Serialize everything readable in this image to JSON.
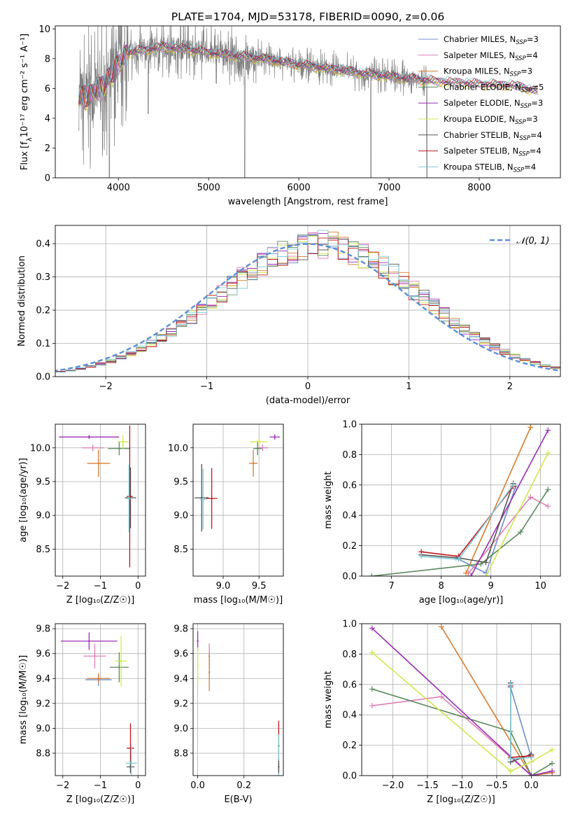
{
  "figure_title": "PLATE=1704, MJD=53178, FIBERID=0090, z=0.06",
  "colors": {
    "Chabrier MILES": "#6f8fd0",
    "Salpeter MILES": "#e07fb5",
    "Kroupa MILES": "#d97b2f",
    "Chabrier ELODIE": "#5a8a5e",
    "Salpeter ELODIE": "#9b2fb5",
    "Kroupa ELODIE": "#cfe84e",
    "Chabrier STELIB": "#555555",
    "Salpeter STELIB": "#c0181c",
    "Kroupa STELIB": "#7ecad4",
    "gaussian": "#5b8fd8"
  },
  "chart_data": [
    {
      "id": "spectrum",
      "type": "line",
      "xlabel": "wavelength [Angstrom, rest frame]",
      "ylabel_pre": "Flux [f",
      "ylabel_mid": "λ",
      "ylabel_post": "10⁻¹⁷ erg cm⁻² s⁻¹ A⁻¹]",
      "xlim": [
        3300,
        8900
      ],
      "ylim": [
        0,
        10.2
      ],
      "xticks": [
        4000,
        5000,
        6000,
        7000,
        8000
      ],
      "yticks": [
        0,
        2,
        4,
        6,
        8,
        10
      ],
      "grid": false,
      "legend_position": "top-right",
      "legend": [
        {
          "label": "Chabrier MILES, N",
          "sub": "SSP",
          "tail": "=3",
          "key": "Chabrier MILES"
        },
        {
          "label": "Salpeter MILES, N",
          "sub": "SSP",
          "tail": "=4",
          "key": "Salpeter MILES"
        },
        {
          "label": "Kroupa MILES, N",
          "sub": "SSP",
          "tail": "=3",
          "key": "Kroupa MILES"
        },
        {
          "label": "Chabrier ELODIE, N",
          "sub": "SSP",
          "tail": "=5",
          "key": "Chabrier ELODIE"
        },
        {
          "label": "Salpeter ELODIE, N",
          "sub": "SSP",
          "tail": "=3",
          "key": "Salpeter ELODIE"
        },
        {
          "label": "Kroupa ELODIE, N",
          "sub": "SSP",
          "tail": "=3",
          "key": "Kroupa ELODIE"
        },
        {
          "label": "Chabrier STELIB, N",
          "sub": "SSP",
          "tail": "=4",
          "key": "Chabrier STELIB"
        },
        {
          "label": "Salpeter STELIB, N",
          "sub": "SSP",
          "tail": "=4",
          "key": "Salpeter STELIB"
        },
        {
          "label": "Kroupa STELIB, N",
          "sub": "SSP",
          "tail": "=4",
          "key": "Kroupa STELIB"
        }
      ],
      "continuum": [
        [
          3560,
          5.3
        ],
        [
          3650,
          5.5
        ],
        [
          3800,
          6.0
        ],
        [
          3950,
          7.2
        ],
        [
          4100,
          8.4
        ],
        [
          4300,
          8.6
        ],
        [
          4500,
          8.8
        ],
        [
          4800,
          8.6
        ],
        [
          5000,
          8.4
        ],
        [
          5300,
          8.2
        ],
        [
          5600,
          8.0
        ],
        [
          6000,
          7.6
        ],
        [
          6500,
          7.2
        ],
        [
          7000,
          6.8
        ],
        [
          7500,
          6.5
        ],
        [
          8000,
          6.3
        ],
        [
          8400,
          6.2
        ],
        [
          8650,
          5.8
        ]
      ],
      "model_span": [
        3560,
        8650
      ],
      "observed_span": [
        3560,
        7440
      ],
      "dropouts": [
        [
          3900,
          0
        ],
        [
          4330,
          4.3
        ],
        [
          5400,
          0
        ],
        [
          6800,
          0
        ],
        [
          7420,
          0
        ]
      ]
    },
    {
      "id": "residuals",
      "type": "histogram",
      "xlabel": "(data-model)/error",
      "ylabel": "Normed distribution",
      "xlim": [
        -2.5,
        2.5
      ],
      "ylim": [
        0,
        0.455
      ],
      "xticks": [
        -2,
        -1,
        0,
        1,
        2
      ],
      "yticks": [
        0.0,
        0.1,
        0.2,
        0.3,
        0.4
      ],
      "grid": true,
      "legend_position": "top-right",
      "legend_label": "𝒩(0, 1)",
      "bin_width": 0.1
    },
    {
      "id": "age-vs-Z",
      "type": "scatter",
      "xlabel": "Z [log₁₀(Z/Z☉)]",
      "ylabel": "age  [log₁₀(age/yr)]",
      "xlim": [
        -2.2,
        0.2
      ],
      "ylim": [
        8.1,
        10.35
      ],
      "xticks": [
        -2,
        -1,
        0
      ],
      "yticks": [
        8.5,
        9.0,
        9.5,
        10.0
      ],
      "grid": true,
      "points": [
        {
          "key": "Salpeter ELODIE",
          "x": -1.3,
          "y": 10.16,
          "xerr": 0.8,
          "yerr": 0.03
        },
        {
          "key": "Salpeter MILES",
          "x": -1.2,
          "y": 10.0,
          "xerr": 0.3,
          "yerr": 0.05
        },
        {
          "key": "Kroupa MILES",
          "x": -1.05,
          "y": 9.77,
          "xerr": 0.3,
          "yerr": 0.2
        },
        {
          "key": "Chabrier ELODIE",
          "x": -0.5,
          "y": 9.99,
          "xerr": 0.3,
          "yerr": 0.1
        },
        {
          "key": "Kroupa ELODIE",
          "x": -0.4,
          "y": 10.09,
          "xerr": 0.15,
          "yerr": 0.1
        },
        {
          "key": "Chabrier STELIB",
          "x": -0.2,
          "y": 9.26,
          "xerr": 0.15,
          "yerr": 0.45
        },
        {
          "key": "Salpeter STELIB",
          "x": -0.22,
          "y": 9.28,
          "xerr": 0.08,
          "yerr": 1.05
        },
        {
          "key": "Kroupa STELIB",
          "x": -0.24,
          "y": 9.25,
          "xerr": 0.06,
          "yerr": 0.5
        }
      ]
    },
    {
      "id": "age-vs-mass",
      "type": "scatter",
      "xlabel": "mass [log₁₀(M/M☉)]",
      "ylabel": "",
      "xlim": [
        8.58,
        9.84
      ],
      "ylim": [
        8.1,
        10.35
      ],
      "xticks": [
        9.0,
        9.5
      ],
      "yticks": [
        8.5,
        9.0,
        9.5,
        10.0
      ],
      "grid": true,
      "points": [
        {
          "key": "Salpeter ELODIE",
          "x": 9.72,
          "y": 10.16,
          "xerr": 0.07,
          "yerr": 0.04
        },
        {
          "key": "Salpeter MILES",
          "x": 9.55,
          "y": 10.0,
          "xerr": 0.08,
          "yerr": 0.05
        },
        {
          "key": "Kroupa MILES",
          "x": 9.42,
          "y": 9.77,
          "xerr": 0.06,
          "yerr": 0.2
        },
        {
          "key": "Chabrier ELODIE",
          "x": 9.48,
          "y": 9.99,
          "xerr": 0.06,
          "yerr": 0.1
        },
        {
          "key": "Kroupa ELODIE",
          "x": 9.5,
          "y": 10.09,
          "xerr": 0.12,
          "yerr": 0.05
        },
        {
          "key": "Chabrier STELIB",
          "x": 8.7,
          "y": 9.26,
          "xerr": 0.1,
          "yerr": 0.5
        },
        {
          "key": "Salpeter STELIB",
          "x": 8.84,
          "y": 9.25,
          "xerr": 0.08,
          "yerr": 0.45
        },
        {
          "key": "Kroupa STELIB",
          "x": 8.72,
          "y": 9.24,
          "xerr": 0.05,
          "yerr": 0.45
        }
      ]
    },
    {
      "id": "weight-vs-age",
      "type": "line",
      "xlabel": "age  [log₁₀(age/yr)]",
      "ylabel": "mass weight",
      "xlim": [
        6.4,
        10.4
      ],
      "ylim": [
        0,
        1.0
      ],
      "xticks": [
        7,
        8,
        9,
        10
      ],
      "yticks": [
        0.0,
        0.2,
        0.4,
        0.6,
        0.8,
        1.0
      ],
      "grid": true,
      "series": [
        {
          "key": "Chabrier MILES",
          "x": [
            8.3,
            8.9,
            9.5
          ],
          "y": [
            0.12,
            0.02,
            0.59
          ]
        },
        {
          "key": "Salpeter MILES",
          "x": [
            8.55,
            9.8,
            10.15
          ],
          "y": [
            0.02,
            0.52,
            0.46
          ]
        },
        {
          "key": "Kroupa MILES",
          "x": [
            8.5,
            9.8
          ],
          "y": [
            0.02,
            0.98
          ]
        },
        {
          "key": "Chabrier ELODIE",
          "x": [
            6.6,
            8.8,
            9.6,
            10.15
          ],
          "y": [
            0.0,
            0.08,
            0.29,
            0.57
          ]
        },
        {
          "key": "Salpeter ELODIE",
          "x": [
            8.6,
            10.15
          ],
          "y": [
            0.0,
            0.96
          ]
        },
        {
          "key": "Kroupa ELODIE",
          "x": [
            8.9,
            10.15
          ],
          "y": [
            0.0,
            0.81
          ]
        },
        {
          "key": "Chabrier STELIB",
          "x": [
            7.6,
            8.35,
            8.9,
            9.45
          ],
          "y": [
            0.14,
            0.12,
            0.09,
            0.61
          ]
        },
        {
          "key": "Salpeter STELIB",
          "x": [
            7.6,
            8.35,
            9.45
          ],
          "y": [
            0.16,
            0.13,
            0.59
          ]
        },
        {
          "key": "Kroupa STELIB",
          "x": [
            7.6,
            8.35,
            9.45
          ],
          "y": [
            0.13,
            0.11,
            0.6
          ]
        }
      ]
    },
    {
      "id": "mass-vs-Z",
      "type": "scatter",
      "xlabel": "Z [log₁₀(Z/Z☉)]",
      "ylabel": "mass [log₁₀(M/M☉)]",
      "xlim": [
        -2.2,
        0.2
      ],
      "ylim": [
        8.62,
        9.84
      ],
      "xticks": [
        -2,
        -1,
        0
      ],
      "yticks": [
        8.8,
        9.0,
        9.2,
        9.4,
        9.6,
        9.8
      ],
      "grid": true,
      "points": [
        {
          "key": "Salpeter ELODIE",
          "x": -1.3,
          "y": 9.7,
          "xerr": 0.75,
          "yerr": 0.07
        },
        {
          "key": "Salpeter MILES",
          "x": -1.15,
          "y": 9.58,
          "xerr": 0.3,
          "yerr": 0.1
        },
        {
          "key": "Chabrier MILES",
          "x": -1.05,
          "y": 9.39,
          "xerr": 0.35,
          "yerr": 0.05
        },
        {
          "key": "Kroupa MILES",
          "x": -1.05,
          "y": 9.4,
          "xerr": 0.3,
          "yerr": 0.04
        },
        {
          "key": "Chabrier ELODIE",
          "x": -0.5,
          "y": 9.49,
          "xerr": 0.25,
          "yerr": 0.12
        },
        {
          "key": "Kroupa ELODIE",
          "x": -0.45,
          "y": 9.54,
          "xerr": 0.15,
          "yerr": 0.2
        },
        {
          "key": "Salpeter STELIB",
          "x": -0.2,
          "y": 8.84,
          "xerr": 0.1,
          "yerr": 0.2
        },
        {
          "key": "Chabrier STELIB",
          "x": -0.2,
          "y": 8.69,
          "xerr": 0.1,
          "yerr": 0.05
        },
        {
          "key": "Kroupa STELIB",
          "x": -0.18,
          "y": 8.72,
          "xerr": 0.15,
          "yerr": 0.15
        }
      ]
    },
    {
      "id": "mass-vs-EBV",
      "type": "scatter",
      "xlabel": "E(B-V)",
      "ylabel": "",
      "xlim": [
        -0.02,
        0.37
      ],
      "ylim": [
        8.62,
        9.84
      ],
      "xticks": [
        0.0,
        0.2
      ],
      "yticks": [
        8.8,
        9.0,
        9.2,
        9.4,
        9.6,
        9.8
      ],
      "grid": true,
      "points": [
        {
          "key": "Salpeter ELODIE",
          "x": 0.0,
          "y": 9.7,
          "xerr": 0.0,
          "yerr": 0.08
        },
        {
          "key": "Kroupa ELODIE",
          "x": 0.0,
          "y": 9.5,
          "xerr": 0.0,
          "yerr": 0.15
        },
        {
          "key": "Salpeter MILES",
          "x": 0.05,
          "y": 9.58,
          "xerr": 0.0,
          "yerr": 0.1
        },
        {
          "key": "Kroupa MILES",
          "x": 0.05,
          "y": 9.45,
          "xerr": 0.0,
          "yerr": 0.15
        },
        {
          "key": "Salpeter STELIB",
          "x": 0.35,
          "y": 8.86,
          "xerr": 0.0,
          "yerr": 0.2
        },
        {
          "key": "Kroupa STELIB",
          "x": 0.35,
          "y": 8.75,
          "xerr": 0.0,
          "yerr": 0.2
        },
        {
          "key": "Chabrier STELIB",
          "x": 0.35,
          "y": 8.69,
          "xerr": 0.0,
          "yerr": 0.05
        }
      ]
    },
    {
      "id": "weight-vs-Z",
      "type": "line",
      "xlabel": "Z [log₁₀(Z/Z☉)]",
      "ylabel": "mass weight",
      "xlim": [
        -2.45,
        0.42
      ],
      "ylim": [
        0,
        1.0
      ],
      "xticks": [
        -2.0,
        -1.5,
        -1.0,
        -0.5,
        0.0
      ],
      "yticks": [
        0.0,
        0.2,
        0.4,
        0.6,
        0.8,
        1.0
      ],
      "grid": true,
      "series": [
        {
          "key": "Chabrier MILES",
          "x": [
            -0.3,
            0.0
          ],
          "y": [
            0.58,
            0.12
          ]
        },
        {
          "key": "Salpeter MILES",
          "x": [
            -2.3,
            -1.3,
            0.0,
            0.3
          ],
          "y": [
            0.46,
            0.52,
            0.0,
            0.02
          ]
        },
        {
          "key": "Kroupa MILES",
          "x": [
            -1.3,
            0.0,
            0.3
          ],
          "y": [
            0.98,
            0.0,
            0.02
          ]
        },
        {
          "key": "Chabrier ELODIE",
          "x": [
            -2.3,
            -0.3,
            0.0,
            0.3
          ],
          "y": [
            0.57,
            0.29,
            0.0,
            0.08
          ]
        },
        {
          "key": "Salpeter ELODIE",
          "x": [
            -2.3,
            0.0,
            0.3
          ],
          "y": [
            0.97,
            0.0,
            0.03
          ]
        },
        {
          "key": "Kroupa ELODIE",
          "x": [
            -2.3,
            -0.3,
            0.0,
            0.3
          ],
          "y": [
            0.81,
            0.03,
            0.09,
            0.17
          ]
        },
        {
          "key": "Chabrier STELIB",
          "x": [
            -0.3,
            -0.3,
            0.0,
            0.0
          ],
          "y": [
            0.61,
            0.09,
            0.14,
            0.12
          ]
        },
        {
          "key": "Salpeter STELIB",
          "x": [
            -0.3,
            -0.3,
            0.0
          ],
          "y": [
            0.59,
            0.12,
            0.13
          ]
        },
        {
          "key": "Kroupa STELIB",
          "x": [
            -0.3,
            -0.3,
            0.0
          ],
          "y": [
            0.6,
            0.11,
            0.12
          ]
        }
      ]
    }
  ]
}
